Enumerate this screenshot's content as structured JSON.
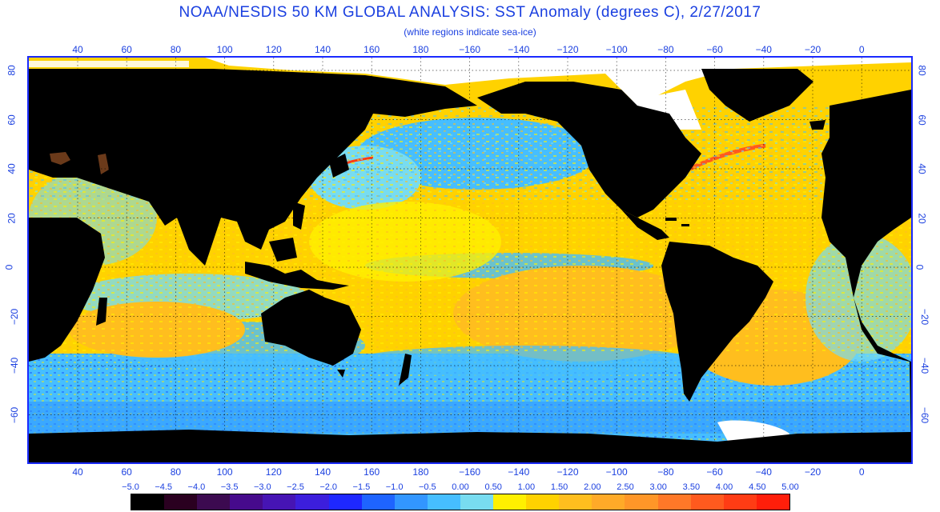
{
  "title": "NOAA/NESDIS 50 KM GLOBAL ANALYSIS: SST Anomaly (degrees C), 2/27/2017",
  "subtitle": "(white regions indicate sea-ice)",
  "longitude_labels": [
    "40",
    "60",
    "80",
    "100",
    "120",
    "140",
    "160",
    "180",
    "−160",
    "−140",
    "−120",
    "−100",
    "−80",
    "−60",
    "−40",
    "−20",
    "0"
  ],
  "latitude_labels": [
    "80",
    "60",
    "40",
    "20",
    "0",
    "−20",
    "−40",
    "−60"
  ],
  "colorbar": {
    "labels": [
      "−5.0",
      "−4.5",
      "−4.0",
      "−3.5",
      "−3.0",
      "−2.5",
      "−2.0",
      "−1.5",
      "−1.0",
      "−0.5",
      "0.00",
      "0.50",
      "1.00",
      "1.50",
      "2.00",
      "2.50",
      "3.00",
      "3.50",
      "4.00",
      "4.50",
      "5.00"
    ],
    "colors": [
      "#000000",
      "#2a0020",
      "#3c0a50",
      "#460a8c",
      "#4614b4",
      "#3c1edc",
      "#1e28ff",
      "#1e64ff",
      "#3296ff",
      "#46beff",
      "#78dcf0",
      "#fff000",
      "#ffd200",
      "#ffbe1e",
      "#ffaa28",
      "#ff9628",
      "#ff7828",
      "#ff5a1e",
      "#ff3c14",
      "#ff1e0a"
    ]
  },
  "colors": {
    "label_blue": "#1a3fe0",
    "frame_blue": "#1a2aff",
    "land": "#000000",
    "sea_ice": "#ffffff"
  }
}
